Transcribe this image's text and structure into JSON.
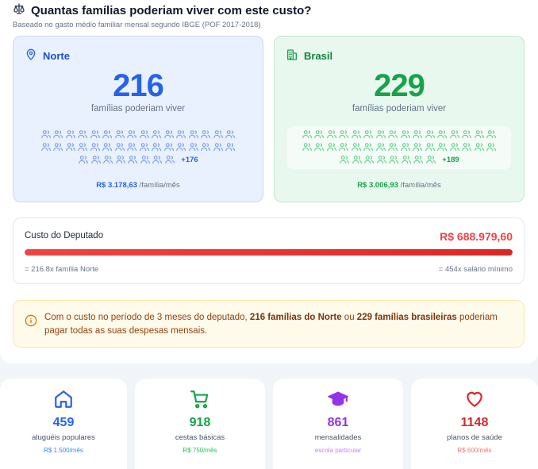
{
  "header": {
    "title": "Quantas famílias poderiam viver com este custo?",
    "subtitle": "Baseado no gasto médio familiar mensal segundo IBGE (POF 2017-2018)",
    "icon": "scale-icon"
  },
  "regions": {
    "norte": {
      "name": "Norte",
      "icon": "map-pin-icon",
      "count": "216",
      "label": "famílias poderiam viver",
      "icons_shown": 40,
      "more": "+176",
      "price": "R$ 3.178,63",
      "price_unit": " /família/mês",
      "color": "#2563eb"
    },
    "brasil": {
      "name": "Brasil",
      "icon": "building-icon",
      "count": "229",
      "label": "famílias poderiam viver",
      "icons_shown": 40,
      "more": "+189",
      "price": "R$ 3.006,93",
      "price_unit": " /família/mês",
      "color": "#16a34a"
    }
  },
  "cost": {
    "title": "Custo do Deputado",
    "value": "R$ 688.979,60",
    "fill_fraction": 1.0,
    "left_note": "= 216.8x família Norte",
    "right_note": "= 454x salário mínimo",
    "color": "#ef4444"
  },
  "alert": {
    "icon": "info-icon",
    "part1": "Com o custo no período de 3 meses do deputado, ",
    "bold1": "216 famílias do Norte",
    "part2": " ou ",
    "bold2": "229 famílias brasileiras",
    "part3": " poderiam pagar todas as suas despesas mensais."
  },
  "stats": [
    {
      "icon": "home-icon",
      "value": "459",
      "label": "aluguéis populares",
      "sub": "R$ 1.500/mês",
      "color": "#2563eb",
      "sub_color": "#3b82f6"
    },
    {
      "icon": "cart-icon",
      "value": "918",
      "label": "cestas básicas",
      "sub": "R$ 750/mês",
      "color": "#16a34a",
      "sub_color": "#22c55e"
    },
    {
      "icon": "graduation-cap-icon",
      "value": "861",
      "label": "mensalidades",
      "sub": "escola particular",
      "color": "#9333ea",
      "sub_color": "#c084fc"
    },
    {
      "icon": "heart-icon",
      "value": "1148",
      "label": "planos de saúde",
      "sub": "R$ 600/mês",
      "color": "#dc2626",
      "sub_color": "#f87171"
    }
  ]
}
